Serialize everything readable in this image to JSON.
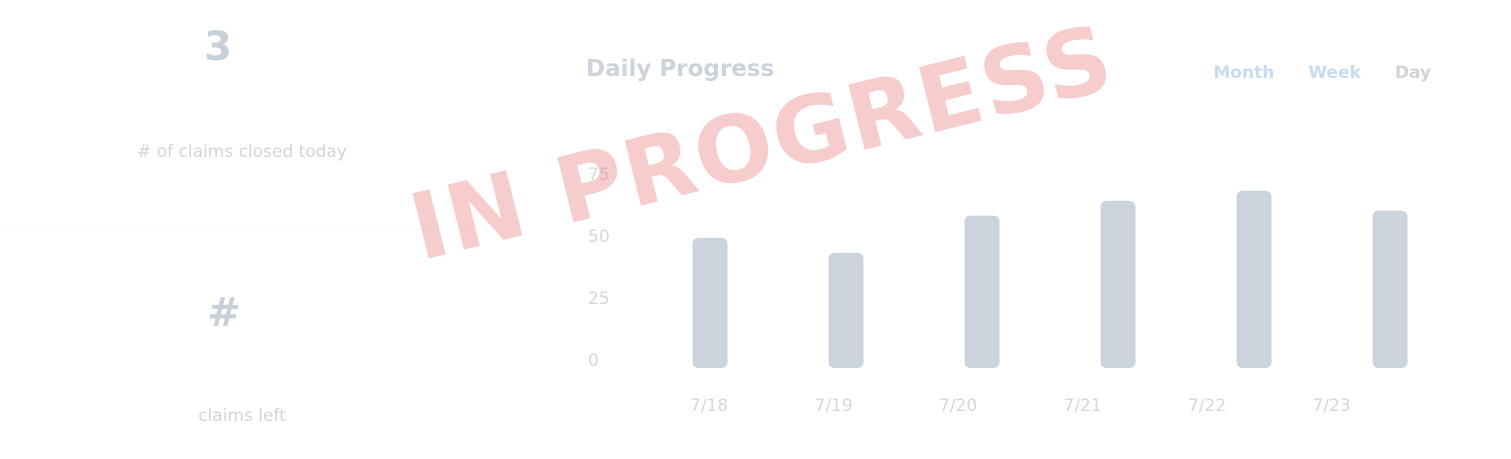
{
  "stats": {
    "closed_today": {
      "value": "3",
      "label": "# of claims closed today"
    },
    "claims_left": {
      "value": "#",
      "label": "claims left"
    }
  },
  "chart_panel": {
    "title": "Daily Progress",
    "tabs": [
      {
        "label": "Month",
        "selected": false
      },
      {
        "label": "Week",
        "selected": false
      },
      {
        "label": "Day",
        "selected": true
      }
    ]
  },
  "chart_data": {
    "type": "bar",
    "title": "Daily Progress",
    "xlabel": "",
    "ylabel": "",
    "categories": [
      "7/18",
      "7/19",
      "7/20",
      "7/21",
      "7/22",
      "7/23"
    ],
    "values": [
      46,
      40,
      55,
      61,
      65,
      57
    ],
    "yticks": [
      0,
      25,
      50,
      75
    ],
    "ylim": [
      0,
      75
    ],
    "grid": false,
    "colors": {
      "bar": "#cbd3dd",
      "tick": "#d3d8de"
    }
  },
  "stamp": {
    "text": "IN PROGRESS",
    "color": "#ea7878"
  }
}
